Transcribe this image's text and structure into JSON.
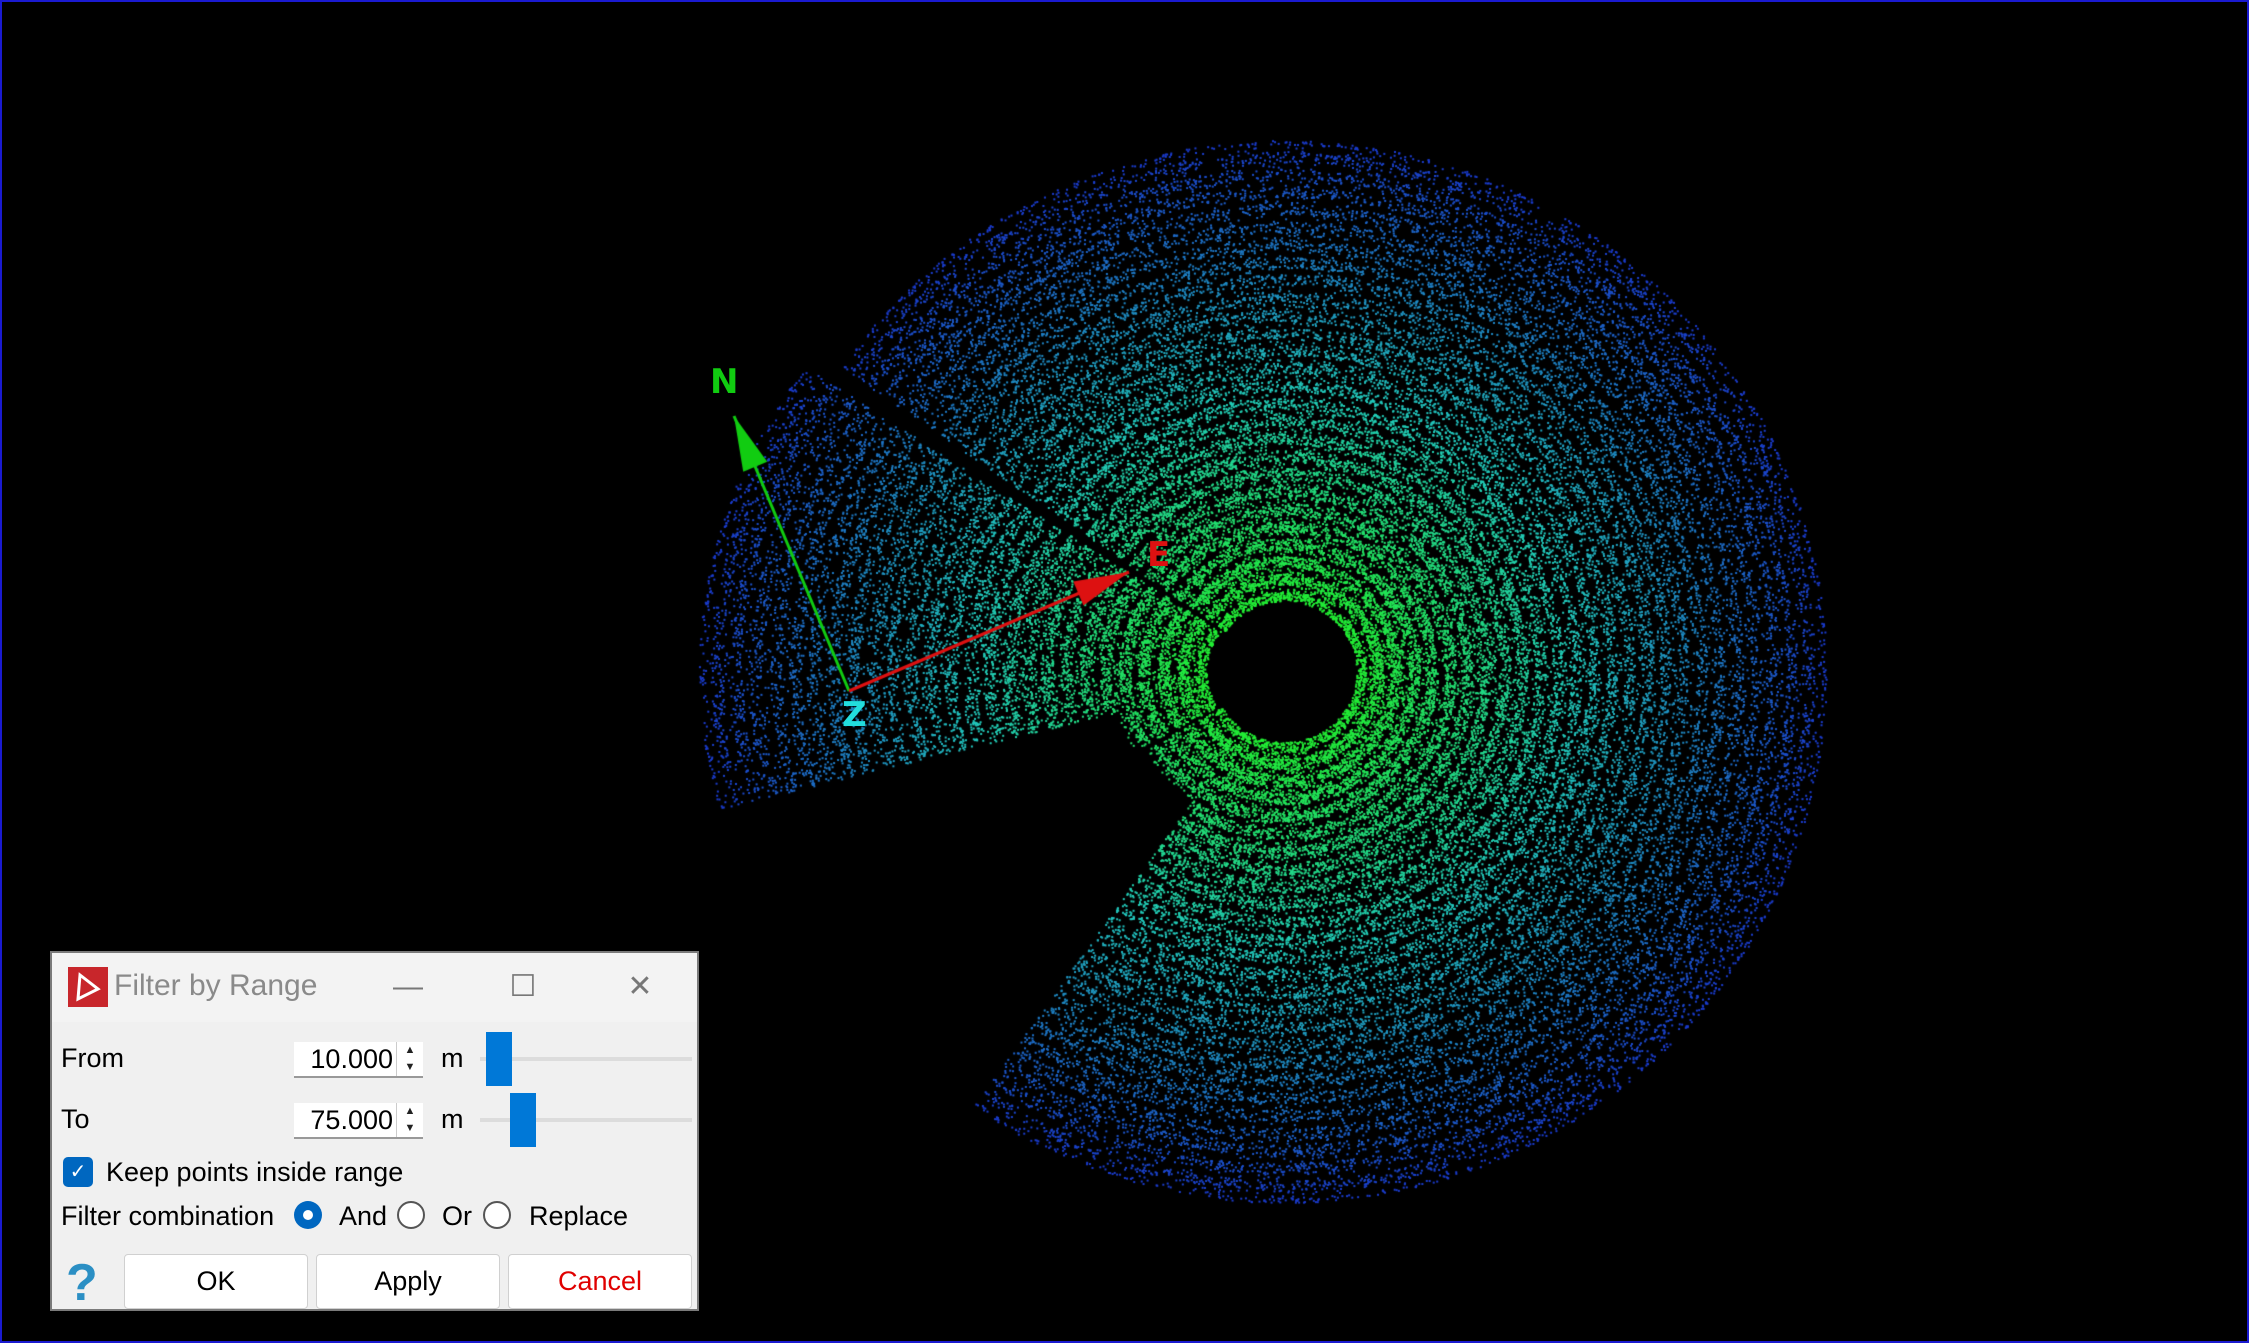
{
  "viewer": {
    "axes": {
      "north": "N",
      "east": "E",
      "z": "Z"
    },
    "colors": {
      "north": "#11cc11",
      "east": "#dd1111",
      "z": "#22dddd",
      "cloud_inner": "#22ee33",
      "cloud_mid": "#22ccbb",
      "cloud_outer": "#1a3acc",
      "border": "#1a1ad0"
    }
  },
  "dialog": {
    "title": "Filter by Range",
    "app_icon": "cloudcompare-triangle-icon",
    "minimize": "—",
    "maximize": "☐",
    "close": "✕",
    "from": {
      "label": "From",
      "value": "10.000",
      "unit": "m",
      "slider_fraction": 0.03
    },
    "to": {
      "label": "To",
      "value": "75.000",
      "unit": "m",
      "slider_fraction": 0.16
    },
    "keep_inside": {
      "label": "Keep points inside range",
      "checked": true
    },
    "combination": {
      "label": "Filter combination",
      "options": [
        "And",
        "Or",
        "Replace"
      ],
      "selected": "And"
    },
    "help": "?",
    "buttons": {
      "ok": "OK",
      "apply": "Apply",
      "cancel": "Cancel"
    },
    "cancel_color": "#e00000"
  }
}
